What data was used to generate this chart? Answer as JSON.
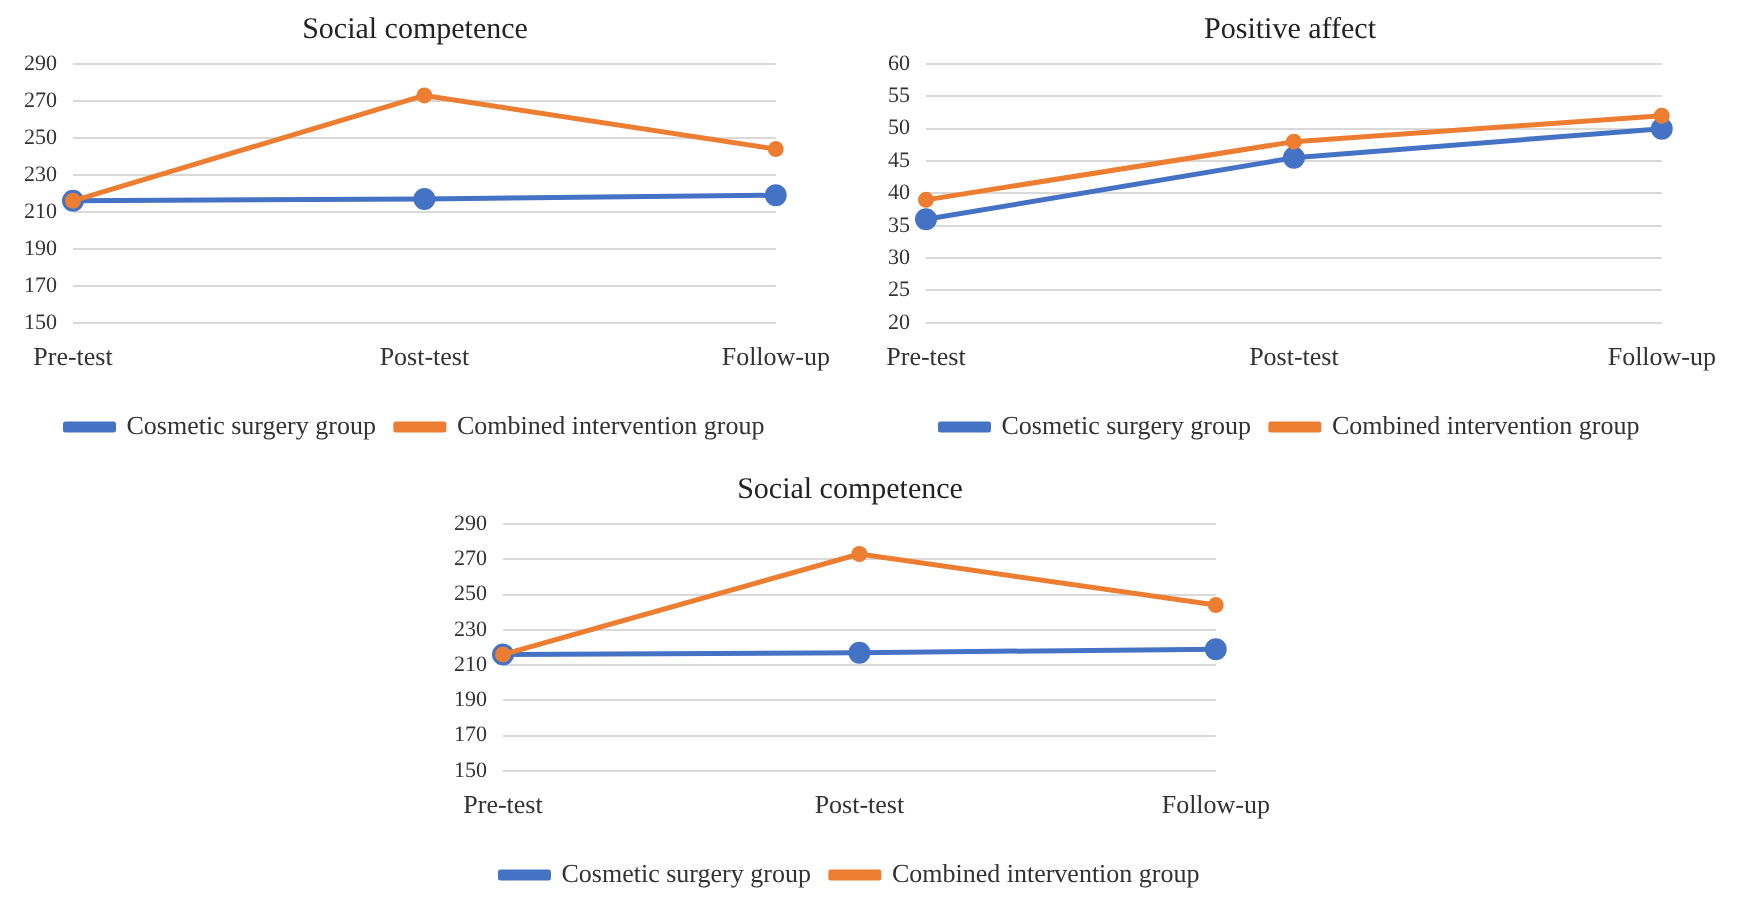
{
  "chart_data": [
    {
      "type": "line",
      "title": "Social competence",
      "categories": [
        "Pre-test",
        "Post-test",
        "Follow-up"
      ],
      "series": [
        {
          "name": "Cosmetic surgery group",
          "color": "#4472c4",
          "values": [
            216,
            217,
            219
          ]
        },
        {
          "name": "Combined intervention group",
          "color": "#ed7d31",
          "values": [
            216,
            273,
            244
          ]
        }
      ],
      "ylim": [
        150,
        290
      ],
      "yticks": [
        150,
        170,
        190,
        210,
        230,
        250,
        270,
        290
      ],
      "grid": "y",
      "legend": "bottom",
      "marker": "circle",
      "line_style": "solid"
    },
    {
      "type": "line",
      "title": "Positive affect",
      "categories": [
        "Pre-test",
        "Post-test",
        "Follow-up"
      ],
      "series": [
        {
          "name": "Cosmetic surgery group",
          "color": "#4472c4",
          "values": [
            36,
            45.5,
            50
          ]
        },
        {
          "name": "Combined intervention group",
          "color": "#ed7d31",
          "values": [
            39,
            48,
            52
          ]
        }
      ],
      "ylim": [
        20,
        60
      ],
      "yticks": [
        20,
        25,
        30,
        35,
        40,
        45,
        50,
        55,
        60
      ],
      "grid": "y",
      "legend": "bottom",
      "marker": "circle",
      "line_style": "solid"
    },
    {
      "type": "line",
      "title": "Social competence",
      "categories": [
        "Pre-test",
        "Post-test",
        "Follow-up"
      ],
      "series": [
        {
          "name": "Cosmetic surgery group",
          "color": "#4472c4",
          "values": [
            216,
            217,
            219
          ]
        },
        {
          "name": "Combined intervention group",
          "color": "#ed7d31",
          "values": [
            216,
            273,
            244
          ]
        }
      ],
      "ylim": [
        150,
        290
      ],
      "yticks": [
        150,
        170,
        190,
        210,
        230,
        250,
        270,
        290
      ],
      "grid": "y",
      "legend": "bottom",
      "marker": "circle",
      "line_style": "solid"
    }
  ]
}
